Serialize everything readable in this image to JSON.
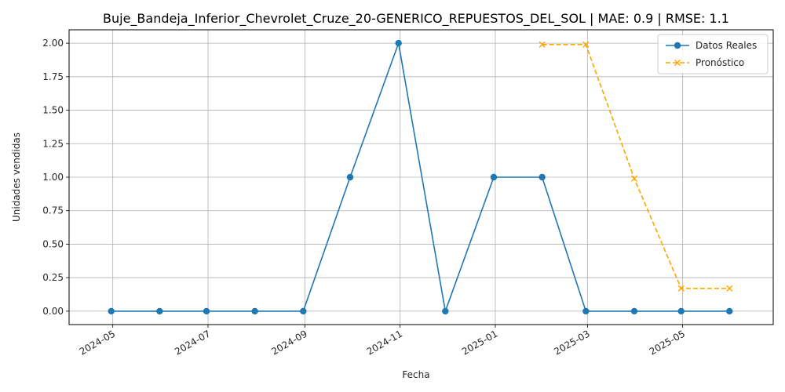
{
  "chart_data": {
    "type": "line",
    "title": "Buje_Bandeja_Inferior_Chevrolet_Cruze_20-GENERICO_REPUESTOS_DEL_SOL | MAE: 0.9 | RMSE: 1.1",
    "xlabel": "Fecha",
    "ylabel": "Unidades vendidas",
    "x_ticks": [
      "2024-05",
      "2024-07",
      "2024-09",
      "2024-11",
      "2025-01",
      "2025-03",
      "2025-05"
    ],
    "y_ticks": [
      "0.00",
      "0.25",
      "0.50",
      "0.75",
      "1.00",
      "1.25",
      "1.50",
      "1.75",
      "2.00"
    ],
    "ylim": [
      -0.1,
      2.1
    ],
    "xlim": [
      "2024-04-03",
      "2025-06-28"
    ],
    "grid": true,
    "legend_position": "top-right",
    "series": [
      {
        "name": "Datos Reales",
        "color": "#1f77b4",
        "marker": "circle",
        "line_style": "solid",
        "points": [
          {
            "x": "2024-04-30",
            "y": 0
          },
          {
            "x": "2024-05-31",
            "y": 0
          },
          {
            "x": "2024-06-30",
            "y": 0
          },
          {
            "x": "2024-07-31",
            "y": 0
          },
          {
            "x": "2024-08-31",
            "y": 0
          },
          {
            "x": "2024-09-30",
            "y": 1
          },
          {
            "x": "2024-10-31",
            "y": 2
          },
          {
            "x": "2024-11-30",
            "y": 0
          },
          {
            "x": "2024-12-31",
            "y": 1
          },
          {
            "x": "2025-01-31",
            "y": 1
          },
          {
            "x": "2025-02-28",
            "y": 0
          },
          {
            "x": "2025-03-31",
            "y": 0
          },
          {
            "x": "2025-04-30",
            "y": 0
          },
          {
            "x": "2025-05-31",
            "y": 0
          }
        ]
      },
      {
        "name": "Pronóstico",
        "color": "#ffa500",
        "marker": "x",
        "line_style": "dashed",
        "points": [
          {
            "x": "2025-01-31",
            "y": 1.99
          },
          {
            "x": "2025-02-28",
            "y": 1.99
          },
          {
            "x": "2025-03-31",
            "y": 0.99
          },
          {
            "x": "2025-04-30",
            "y": 0.17
          },
          {
            "x": "2025-05-31",
            "y": 0.17
          }
        ]
      }
    ]
  }
}
